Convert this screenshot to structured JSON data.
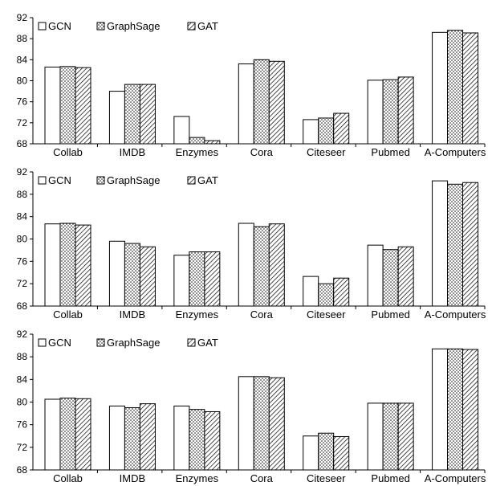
{
  "series_styles": [
    {
      "name": "GCN",
      "pattern": "white"
    },
    {
      "name": "GraphSage",
      "pattern": "dots"
    },
    {
      "name": "GAT",
      "pattern": "hatch"
    }
  ],
  "chart_data": [
    {
      "type": "bar",
      "categories": [
        "Collab",
        "IMDB",
        "Enzymes",
        "Cora",
        "Citeseer",
        "Pubmed",
        "A-Computers"
      ],
      "series": [
        {
          "name": "GCN",
          "values": [
            82.6,
            78.0,
            73.2,
            83.2,
            72.6,
            80.1,
            89.2
          ]
        },
        {
          "name": "GraphSage",
          "values": [
            82.7,
            79.3,
            69.2,
            84.0,
            72.9,
            80.2,
            89.6
          ]
        },
        {
          "name": "GAT",
          "values": [
            82.5,
            79.3,
            68.6,
            83.7,
            73.8,
            80.7,
            89.1
          ]
        }
      ],
      "ylim": [
        68,
        92
      ],
      "yticks": [
        68,
        72,
        76,
        80,
        84,
        88,
        92
      ],
      "legend": "top-left",
      "grid": false
    },
    {
      "type": "bar",
      "categories": [
        "Collab",
        "IMDB",
        "Enzymes",
        "Cora",
        "Citeseer",
        "Pubmed",
        "A-Computers"
      ],
      "series": [
        {
          "name": "GCN",
          "values": [
            82.7,
            79.6,
            77.1,
            82.8,
            73.3,
            78.9,
            90.4
          ]
        },
        {
          "name": "GraphSage",
          "values": [
            82.8,
            79.2,
            77.7,
            82.2,
            72.0,
            78.1,
            89.8
          ]
        },
        {
          "name": "GAT",
          "values": [
            82.5,
            78.6,
            77.7,
            82.7,
            73.0,
            78.6,
            90.1
          ]
        }
      ],
      "ylim": [
        68,
        92
      ],
      "yticks": [
        68,
        72,
        76,
        80,
        84,
        88,
        92
      ],
      "legend": "top-left",
      "grid": false
    },
    {
      "type": "bar",
      "categories": [
        "Collab",
        "IMDB",
        "Enzymes",
        "Cora",
        "Citeseer",
        "Pubmed",
        "A-Computers"
      ],
      "series": [
        {
          "name": "GCN",
          "values": [
            80.5,
            79.3,
            79.3,
            84.5,
            74.0,
            79.8,
            89.4
          ]
        },
        {
          "name": "GraphSage",
          "values": [
            80.7,
            79.0,
            78.7,
            84.5,
            74.5,
            79.8,
            89.4
          ]
        },
        {
          "name": "GAT",
          "values": [
            80.6,
            79.7,
            78.3,
            84.3,
            73.9,
            79.8,
            89.3
          ]
        }
      ],
      "ylim": [
        68,
        92
      ],
      "yticks": [
        68,
        72,
        76,
        80,
        84,
        88,
        92
      ],
      "legend": "top-left",
      "grid": false
    }
  ]
}
